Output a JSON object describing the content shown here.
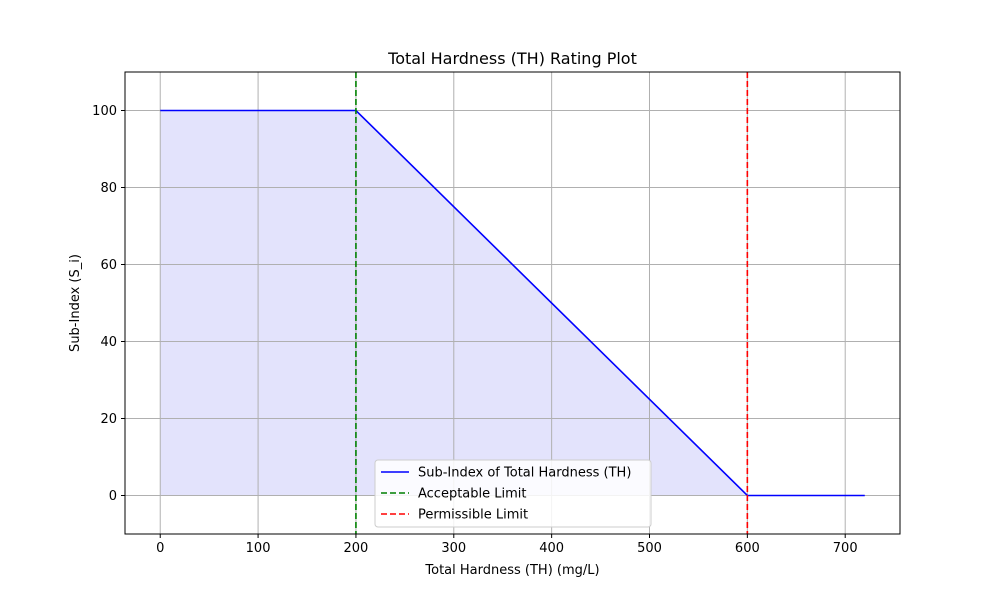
{
  "chart_data": {
    "type": "line",
    "title": "Total Hardness (TH) Rating Plot",
    "xlabel": "Total Hardness (TH) (mg/L)",
    "ylabel": "Sub-Index (S_i)",
    "xlim": [
      -36,
      756
    ],
    "ylim": [
      -10,
      110
    ],
    "xticks": [
      0,
      100,
      200,
      300,
      400,
      500,
      600,
      700
    ],
    "yticks": [
      0,
      20,
      40,
      60,
      80,
      100
    ],
    "grid": true,
    "legend_position": "lower-center",
    "series": [
      {
        "name": "Sub-Index of Total Hardness (TH)",
        "color": "#0000ff",
        "style": "solid",
        "x": [
          0,
          200,
          600,
          720
        ],
        "y": [
          100,
          100,
          0,
          0
        ],
        "fill": {
          "color": "#e3e3fc",
          "x_max": 600
        }
      }
    ],
    "vlines": [
      {
        "name": "Acceptable Limit",
        "x": 200,
        "color": "#008000",
        "style": "dashed"
      },
      {
        "name": "Permissible Limit",
        "x": 600,
        "color": "#ff0000",
        "style": "dashed"
      }
    ]
  }
}
